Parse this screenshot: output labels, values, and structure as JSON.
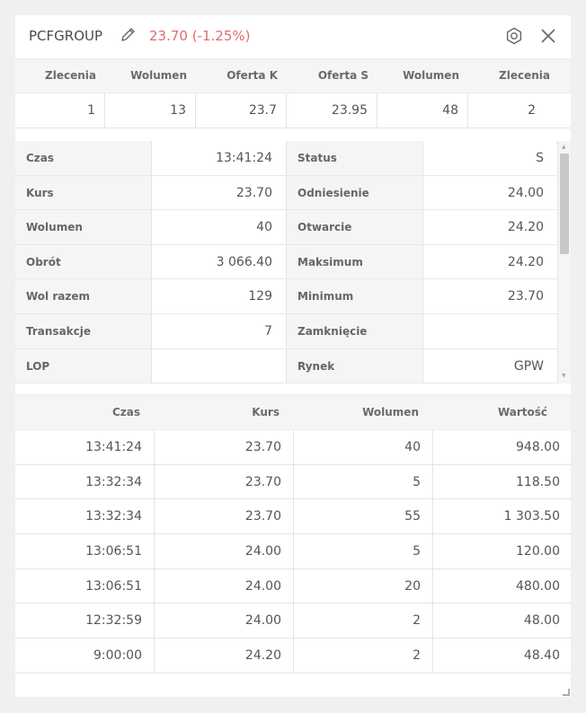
{
  "header": {
    "symbol": "PCFGROUP",
    "price_change": "23.70 (-1.25%)",
    "edit_icon": "pencil-icon",
    "settings_icon": "settings-icon",
    "close_icon": "close-icon",
    "price_color": "#e26a6a"
  },
  "orderbook": {
    "headers": [
      "Zlecenia",
      "Wolumen",
      "Oferta K",
      "Oferta S",
      "Wolumen",
      "Zlecenia"
    ],
    "row": [
      "1",
      "13",
      "23.7",
      "23.95",
      "48",
      "2"
    ]
  },
  "details": {
    "left": [
      {
        "label": "Czas",
        "value": "13:41:24"
      },
      {
        "label": "Kurs",
        "value": "23.70"
      },
      {
        "label": "Wolumen",
        "value": "40"
      },
      {
        "label": "Obrót",
        "value": "3 066.40"
      },
      {
        "label": "Wol razem",
        "value": "129"
      },
      {
        "label": "Transakcje",
        "value": "7"
      },
      {
        "label": "LOP",
        "value": ""
      }
    ],
    "right": [
      {
        "label": "Status",
        "value": "S"
      },
      {
        "label": "Odniesienie",
        "value": "24.00"
      },
      {
        "label": "Otwarcie",
        "value": "24.20"
      },
      {
        "label": "Maksimum",
        "value": "24.20"
      },
      {
        "label": "Minimum",
        "value": "23.70"
      },
      {
        "label": "Zamknięcie",
        "value": ""
      },
      {
        "label": "Rynek",
        "value": "GPW"
      }
    ]
  },
  "trades": {
    "headers": [
      "Czas",
      "Kurs",
      "Wolumen",
      "Wartość"
    ],
    "rows": [
      [
        "13:41:24",
        "23.70",
        "40",
        "948.00"
      ],
      [
        "13:32:34",
        "23.70",
        "5",
        "118.50"
      ],
      [
        "13:32:34",
        "23.70",
        "55",
        "1 303.50"
      ],
      [
        "13:06:51",
        "24.00",
        "5",
        "120.00"
      ],
      [
        "13:06:51",
        "24.00",
        "20",
        "480.00"
      ],
      [
        "12:32:59",
        "24.00",
        "2",
        "48.00"
      ],
      [
        "9:00:00",
        "24.20",
        "2",
        "48.40"
      ]
    ]
  }
}
